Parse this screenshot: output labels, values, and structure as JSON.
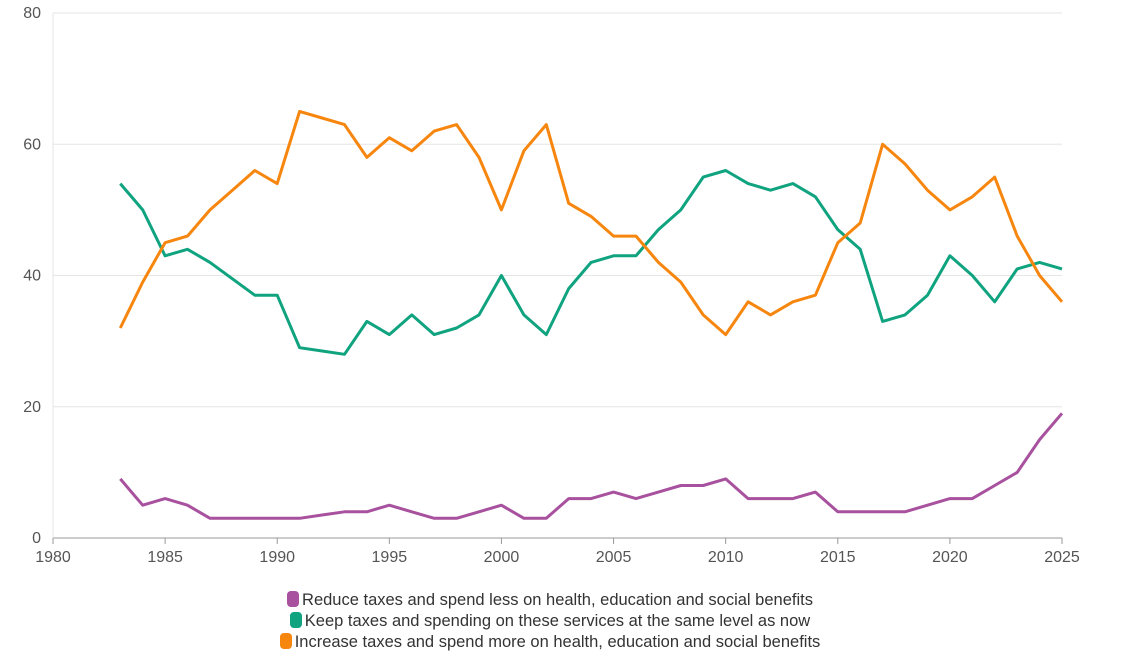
{
  "chart_data": {
    "type": "line",
    "title": "",
    "xlabel": "",
    "ylabel": "",
    "xlim": [
      1980,
      2025
    ],
    "ylim": [
      0,
      80
    ],
    "xticks": [
      "1980",
      "1985",
      "1990",
      "1995",
      "2000",
      "2005",
      "2010",
      "2015",
      "2020",
      "2025"
    ],
    "yticks": [
      "0",
      "20",
      "40",
      "60",
      "80"
    ],
    "grid": true,
    "legend_position": "bottom",
    "x": [
      1983,
      1984,
      1985,
      1986,
      1987,
      1988,
      1989,
      1990,
      1991,
      1992,
      1993,
      1994,
      1995,
      1996,
      1997,
      1998,
      1999,
      2000,
      2001,
      2002,
      2003,
      2004,
      2005,
      2006,
      2007,
      2008,
      2009,
      2010,
      2011,
      2012,
      2013,
      2014,
      2015,
      2016,
      2017,
      2018,
      2019,
      2020,
      2021,
      2022,
      2023,
      2024,
      2025
    ],
    "series": [
      {
        "name": "Reduce taxes and spend less on health, education and social benefits",
        "color": "#a8519e",
        "values": [
          9,
          5,
          6,
          5,
          3,
          3,
          3,
          3,
          3,
          3.5,
          4,
          4,
          5,
          4,
          3,
          3,
          4,
          5,
          3,
          3,
          6,
          6,
          7,
          6,
          7,
          8,
          8,
          9,
          6,
          6,
          6,
          7,
          4,
          4,
          4,
          4,
          5,
          6,
          6,
          8,
          10,
          15,
          19
        ]
      },
      {
        "name": "Keep taxes and spending on these services at the same level as now",
        "color": "#10a37f",
        "values": [
          54,
          50,
          43,
          44,
          42,
          39.5,
          37,
          37,
          29,
          28.5,
          28,
          33,
          31,
          34,
          31,
          32,
          34,
          40,
          34,
          31,
          38,
          42,
          43,
          43,
          47,
          50,
          55,
          56,
          54,
          53,
          54,
          52,
          47,
          44,
          33,
          34,
          37,
          43,
          40,
          36,
          41,
          42,
          41
        ]
      },
      {
        "name": "Increase taxes and spend more on health, education and social benefits",
        "color": "#f7860f",
        "values": [
          32,
          39,
          45,
          46,
          50,
          53,
          56,
          54,
          65,
          64,
          63,
          58,
          61,
          59,
          62,
          63,
          58,
          50,
          59,
          63,
          51,
          49,
          46,
          46,
          42,
          39,
          34,
          31,
          36,
          34,
          36,
          37,
          45,
          48,
          60,
          57,
          53,
          50,
          52,
          55,
          46,
          40,
          36
        ]
      }
    ]
  }
}
